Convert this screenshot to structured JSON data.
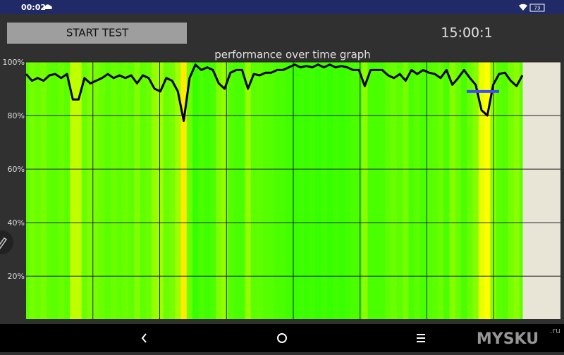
{
  "status_bar": {
    "time": "00:02",
    "battery": "73"
  },
  "button": {
    "label": "START TEST"
  },
  "timer": "15:00:1",
  "chart_data": {
    "type": "line",
    "title": "performance over time graph",
    "values": [
      95.5,
      93,
      94,
      93,
      95,
      95.5,
      94,
      95.5,
      86,
      86,
      94,
      92,
      93,
      94,
      95.5,
      94,
      95,
      94,
      95,
      92,
      95,
      94,
      90,
      89,
      94,
      93,
      89,
      78,
      94,
      99,
      97,
      98,
      97,
      92,
      90,
      96,
      97,
      97,
      90,
      95.5,
      95,
      96,
      96,
      97,
      97,
      98,
      99,
      98,
      98.5,
      98,
      99,
      98,
      99,
      98,
      98.5,
      98,
      97,
      97,
      91,
      97,
      97,
      97,
      95,
      94,
      95.5,
      93,
      97,
      95.5,
      97,
      96,
      95.5,
      94,
      97,
      91.5,
      94,
      97,
      94,
      91.5,
      82,
      80,
      91.5,
      95.5,
      96,
      93,
      91,
      95
    ],
    "color": "#000000",
    "ylim": [
      4,
      100
    ],
    "yticks": [
      {
        "value": 20,
        "label": "20%"
      },
      {
        "value": 40,
        "label": "40%"
      },
      {
        "value": 60,
        "label": "60%"
      },
      {
        "value": 80,
        "label": "80%"
      },
      {
        "value": 100,
        "label": "100%"
      }
    ],
    "grid": true,
    "background": "#e8e4d6",
    "marker": {
      "value": 89,
      "color": "#3d4bff"
    }
  },
  "watermark": {
    "text": "MYSKU",
    "suffix": ".ru"
  }
}
